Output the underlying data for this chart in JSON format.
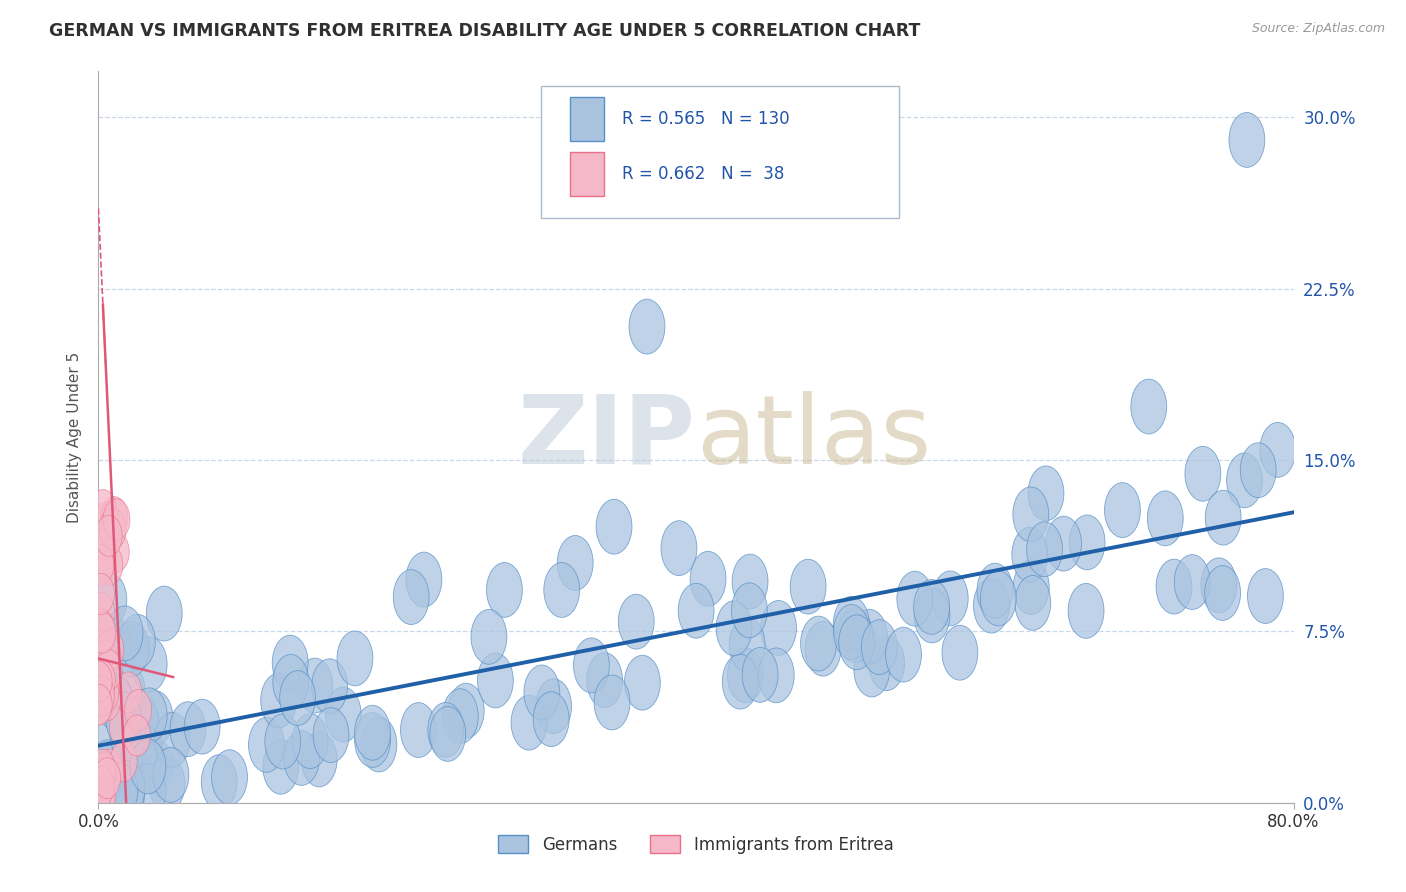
{
  "title": "GERMAN VS IMMIGRANTS FROM ERITREA DISABILITY AGE UNDER 5 CORRELATION CHART",
  "source": "Source: ZipAtlas.com",
  "ylabel": "Disability Age Under 5",
  "ylabel_vals": [
    0.0,
    7.5,
    15.0,
    22.5,
    30.0
  ],
  "xmin": 0.0,
  "xmax": 80.0,
  "ymin": 0.0,
  "ymax": 32.0,
  "r_german": 0.565,
  "n_german": 130,
  "r_eritrea": 0.662,
  "n_eritrea": 38,
  "color_german": "#aac4e0",
  "color_eritrea": "#f5b8c8",
  "edge_german": "#5590c8",
  "edge_eritrea": "#e8708a",
  "trendline_german": "#2060a8",
  "trendline_eritrea": "#e05878",
  "background": "#ffffff",
  "grid_color": "#c8d8e8",
  "title_color": "#303030",
  "axis_text_color": "#2255aa",
  "watermark_zip_color": "#bdc8d8",
  "watermark_atlas_color": "#c8b890",
  "legend_border_color": "#aabbcc",
  "bottom_legend_labels": [
    "Germans",
    "Immigrants from Eritrea"
  ]
}
